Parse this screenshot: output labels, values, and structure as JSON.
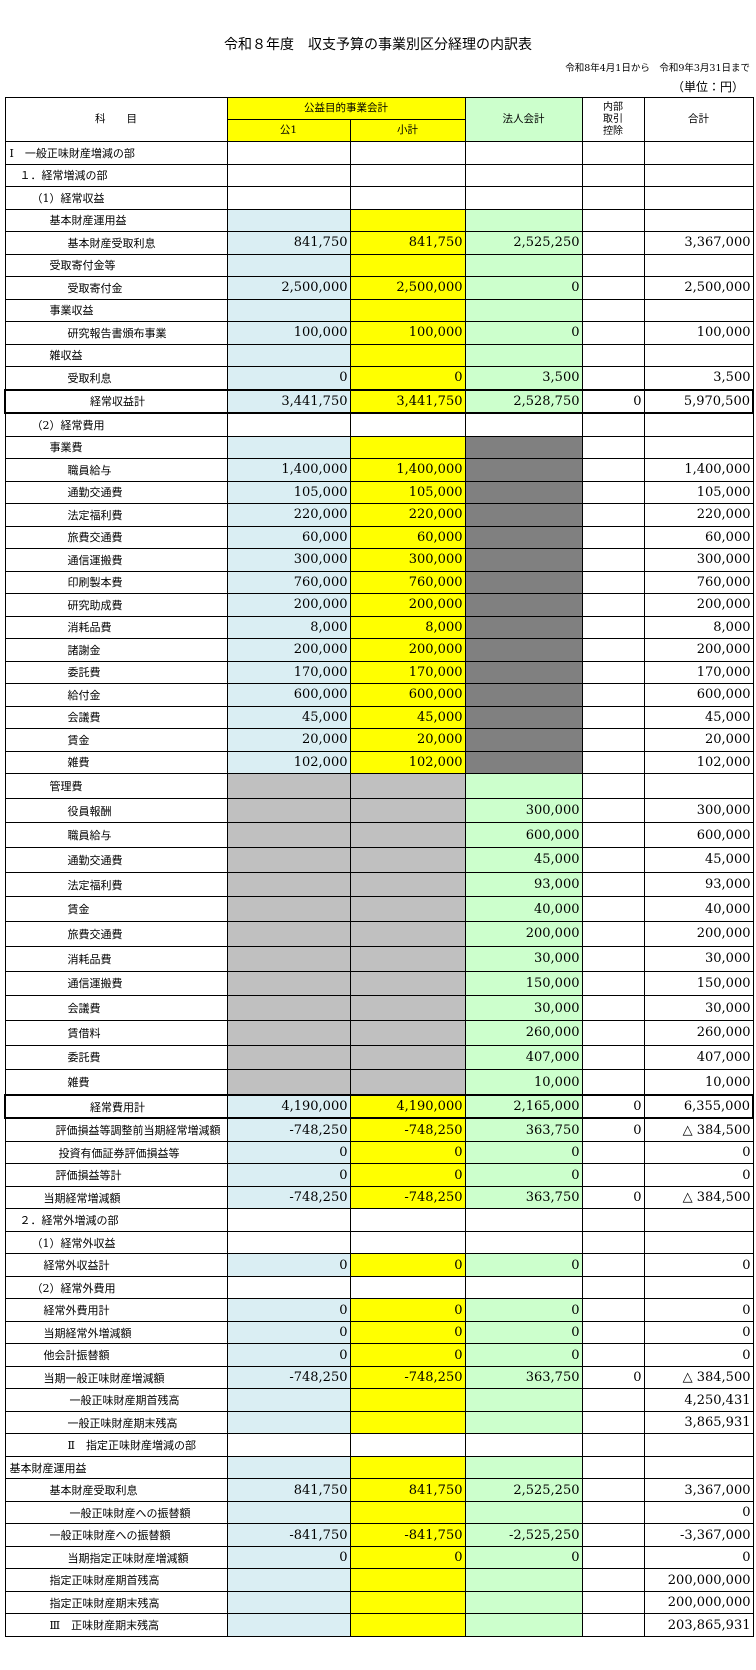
{
  "header": {
    "title": "令和８年度　収支予算の事業別区分経理の内訳表",
    "period": "令和8年4月1日から　令和9年3月31日まで",
    "unit": "（単位：円）"
  },
  "table": {
    "head": {
      "subject": "科　　目",
      "public": "公益目的事業会計",
      "corporate": "法人会計",
      "internal": "内部\n取引\n控除",
      "total": "合計",
      "public1": "公1",
      "subtotal": "小計"
    },
    "rows": [
      [
        "Ⅰ　一般正味財産増減の部",
        null,
        null,
        null,
        null,
        null
      ],
      [
        "１．経常増減の部",
        null,
        null,
        null,
        null,
        null
      ],
      [
        "（1）経常収益",
        null,
        null,
        null,
        null,
        null
      ],
      [
        "基本財産運用益",
        null,
        null,
        null,
        null,
        null
      ],
      [
        "基本財産受取利息",
        "841,750",
        "841,750",
        "2,525,250",
        null,
        "3,367,000"
      ],
      [
        "受取寄付金等",
        null,
        null,
        null,
        null,
        null
      ],
      [
        "受取寄付金",
        "2,500,000",
        "2,500,000",
        "0",
        null,
        "2,500,000"
      ],
      [
        "事業収益",
        null,
        null,
        null,
        null,
        null
      ],
      [
        "研究報告書頒布事業",
        "100,000",
        "100,000",
        "0",
        null,
        "100,000"
      ],
      [
        "雑収益",
        null,
        null,
        null,
        null,
        null
      ],
      [
        "受取利息",
        "0",
        "0",
        "3,500",
        null,
        "3,500"
      ],
      [
        "経常収益計",
        "3,441,750",
        "3,441,750",
        "2,528,750",
        "0",
        "5,970,500"
      ],
      [
        "（2）経常費用",
        null,
        null,
        null,
        null,
        null
      ],
      [
        "事業費",
        null,
        null,
        null,
        null,
        null
      ],
      [
        "職員給与",
        "1,400,000",
        "1,400,000",
        null,
        null,
        "1,400,000"
      ],
      [
        "通勤交通費",
        "105,000",
        "105,000",
        null,
        null,
        "105,000"
      ],
      [
        "法定福利費",
        "220,000",
        "220,000",
        null,
        null,
        "220,000"
      ],
      [
        "旅費交通費",
        "60,000",
        "60,000",
        null,
        null,
        "60,000"
      ],
      [
        "通信運搬費",
        "300,000",
        "300,000",
        null,
        null,
        "300,000"
      ],
      [
        "印刷製本費",
        "760,000",
        "760,000",
        null,
        null,
        "760,000"
      ],
      [
        "研究助成費",
        "200,000",
        "200,000",
        null,
        null,
        "200,000"
      ],
      [
        "消耗品費",
        "8,000",
        "8,000",
        null,
        null,
        "8,000"
      ],
      [
        "諸謝金",
        "200,000",
        "200,000",
        null,
        null,
        "200,000"
      ],
      [
        "委託費",
        "170,000",
        "170,000",
        null,
        null,
        "170,000"
      ],
      [
        "給付金",
        "600,000",
        "600,000",
        null,
        null,
        "600,000"
      ],
      [
        "会議費",
        "45,000",
        "45,000",
        null,
        null,
        "45,000"
      ],
      [
        "賃金",
        "20,000",
        "20,000",
        null,
        null,
        "20,000"
      ],
      [
        "雑費",
        "102,000",
        "102,000",
        null,
        null,
        "102,000"
      ],
      [
        "管理費",
        null,
        null,
        null,
        null,
        null
      ],
      [
        "役員報酬",
        null,
        null,
        "300,000",
        null,
        "300,000"
      ],
      [
        "職員給与",
        null,
        null,
        "600,000",
        null,
        "600,000"
      ],
      [
        "通勤交通費",
        null,
        null,
        "45,000",
        null,
        "45,000"
      ],
      [
        "法定福利費",
        null,
        null,
        "93,000",
        null,
        "93,000"
      ],
      [
        "賃金",
        null,
        null,
        "40,000",
        null,
        "40,000"
      ],
      [
        "旅費交通費",
        null,
        null,
        "200,000",
        null,
        "200,000"
      ],
      [
        "消耗品費",
        null,
        null,
        "30,000",
        null,
        "30,000"
      ],
      [
        "通信運搬費",
        null,
        null,
        "150,000",
        null,
        "150,000"
      ],
      [
        "会議費",
        null,
        null,
        "30,000",
        null,
        "30,000"
      ],
      [
        "賃借料",
        null,
        null,
        "260,000",
        null,
        "260,000"
      ],
      [
        "委託費",
        null,
        null,
        "407,000",
        null,
        "407,000"
      ],
      [
        "雑費",
        null,
        null,
        "10,000",
        null,
        "10,000"
      ],
      [
        "経常費用計",
        "4,190,000",
        "4,190,000",
        "2,165,000",
        "0",
        "6,355,000"
      ],
      [
        "評価損益等調整前当期経常増減額",
        "-748,250",
        "-748,250",
        "363,750",
        "0",
        "△ 384,500"
      ],
      [
        "投資有価証券評価損益等",
        "0",
        "0",
        "0",
        null,
        "0"
      ],
      [
        "評価損益等計",
        "0",
        "0",
        "0",
        null,
        "0"
      ],
      [
        "当期経常増減額",
        "-748,250",
        "-748,250",
        "363,750",
        "0",
        "△ 384,500"
      ],
      [
        "２．経常外増減の部",
        null,
        null,
        null,
        null,
        null
      ],
      [
        "（1）経常外収益",
        null,
        null,
        null,
        null,
        null
      ],
      [
        "経常外収益計",
        "0",
        "0",
        "0",
        null,
        "0"
      ],
      [
        "（2）経常外費用",
        null,
        null,
        null,
        null,
        null
      ],
      [
        "経常外費用計",
        "0",
        "0",
        "0",
        null,
        "0"
      ],
      [
        "当期経常外増減額",
        "0",
        "0",
        "0",
        null,
        "0"
      ],
      [
        "他会計振替額",
        "0",
        "0",
        "0",
        null,
        "0"
      ],
      [
        "当期一般正味財産増減額",
        "-748,250",
        "-748,250",
        "363,750",
        "0",
        "△ 384,500"
      ],
      [
        "一般正味財産期首残高",
        null,
        null,
        null,
        null,
        "4,250,431"
      ],
      [
        "一般正味財産期末残高",
        null,
        null,
        null,
        null,
        "3,865,931"
      ],
      [
        "Ⅱ　指定正味財産増減の部",
        null,
        null,
        null,
        null,
        null
      ],
      [
        "基本財産運用益",
        null,
        null,
        null,
        null,
        null
      ],
      [
        "基本財産受取利息",
        "841,750",
        "841,750",
        "2,525,250",
        null,
        "3,367,000"
      ],
      [
        "一般正味財産への振替額",
        null,
        null,
        null,
        null,
        "0"
      ],
      [
        "一般正味財産への振替額",
        "-841,750",
        "-841,750",
        "-2,525,250",
        null,
        "-3,367,000"
      ],
      [
        "当期指定正味財産増減額",
        "0",
        "0",
        "0",
        null,
        "0"
      ],
      [
        "指定正味財産期首残高",
        null,
        null,
        null,
        null,
        "200,000,000"
      ],
      [
        "指定正味財産期末残高",
        null,
        null,
        null,
        null,
        "200,000,000"
      ],
      [
        "Ⅲ　正味財産期末残高",
        null,
        null,
        null,
        null,
        "203,865,931"
      ]
    ]
  }
}
